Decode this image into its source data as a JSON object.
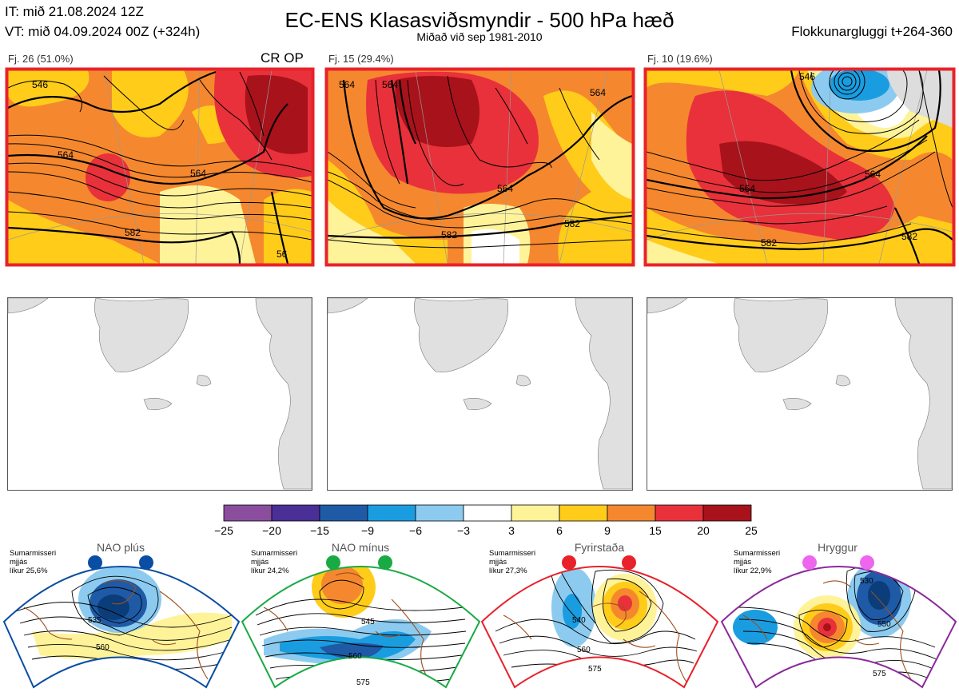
{
  "header": {
    "it_line": "IT: mið 21.08.2024 12Z",
    "vt_line": "VT: mið 04.09.2024 00Z  (+324h)",
    "title": "EC-ENS Klasasviðsmyndir - 500 hPa hæð",
    "subtitle": "Miðað við sep 1981-2010",
    "window": "Flokkunargluggi t+264-360",
    "tags": "CR OP"
  },
  "clusters": [
    {
      "label": "Fj. 26 (51.0%)",
      "contours": [
        "546",
        "564",
        "564",
        "582",
        "56"
      ]
    },
    {
      "label": "Fj. 15 (29.4%)",
      "contours": [
        "564",
        "564",
        "564",
        "564",
        "582",
        "582"
      ]
    },
    {
      "label": "Fj. 10 (19.6%)",
      "contours": [
        "546",
        "564",
        "564",
        "582",
        "582"
      ]
    }
  ],
  "colorbar": {
    "ticks": [
      "−25",
      "−20",
      "−15",
      "−9",
      "−6",
      "−3",
      "3",
      "6",
      "9",
      "15",
      "20",
      "25"
    ],
    "colors": [
      "#8b4d9e",
      "#4a2f96",
      "#1f5aa6",
      "#1a9de0",
      "#8ccbef",
      "#ffffff",
      "#fff39a",
      "#ffcc1a",
      "#f5882e",
      "#e8313a",
      "#a8121b"
    ]
  },
  "regimes": [
    {
      "name": "NAO plús",
      "season": "Sumarmisseri",
      "skill": "mjjás",
      "likelihood": "líkur 25,6%",
      "dot_color": "#0a4ea3",
      "frame_color": "#0a4ea3",
      "labels": [
        "535",
        "560"
      ]
    },
    {
      "name": "NAO mínus",
      "season": "Sumarmisseri",
      "skill": "mjjás",
      "likelihood": "líkur 24,2%",
      "dot_color": "#1aaa44",
      "frame_color": "#1aaa44",
      "labels": [
        "545",
        "560",
        "575"
      ]
    },
    {
      "name": "Fyrirstaða",
      "season": "Sumarmisseri",
      "skill": "mjjás",
      "likelihood": "líkur 27,3%",
      "dot_color": "#e8222a",
      "frame_color": "#e8222a",
      "labels": [
        "540",
        "560",
        "575"
      ]
    },
    {
      "name": "Hryggur",
      "season": "Sumarmisseri",
      "skill": "mjjás",
      "likelihood": "líkur 22,9%",
      "dot_color": "#ee66ee",
      "frame_color": "#8a2a9a",
      "labels": [
        "530",
        "550",
        "575"
      ]
    }
  ]
}
